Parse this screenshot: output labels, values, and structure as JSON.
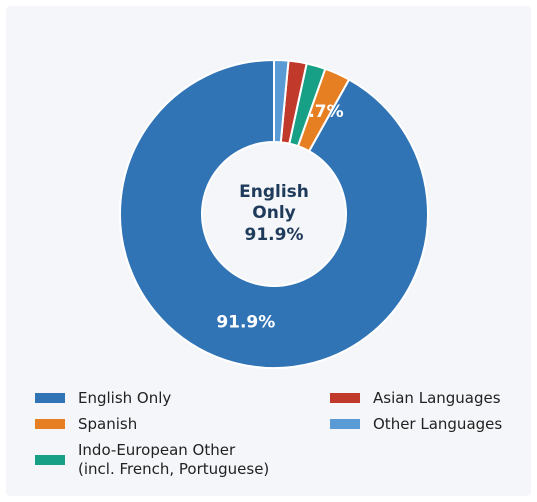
{
  "chart_data": {
    "type": "donut",
    "categories": [
      "English Only",
      "Spanish",
      "Indo-European Other\n(incl. French, Portuguese)",
      "Asian Languages",
      "Other Languages"
    ],
    "values": [
      91.9,
      2.7,
      2.0,
      1.9,
      1.5
    ],
    "value_labels": [
      "91.9%",
      "2.7%",
      null,
      null,
      null
    ],
    "colors": [
      "#3174b6",
      "#e67e22",
      "#17a085",
      "#c0392b",
      "#5b9bd5"
    ],
    "start_angle": 90,
    "counterclock": true,
    "legend": "lower center"
  }
}
